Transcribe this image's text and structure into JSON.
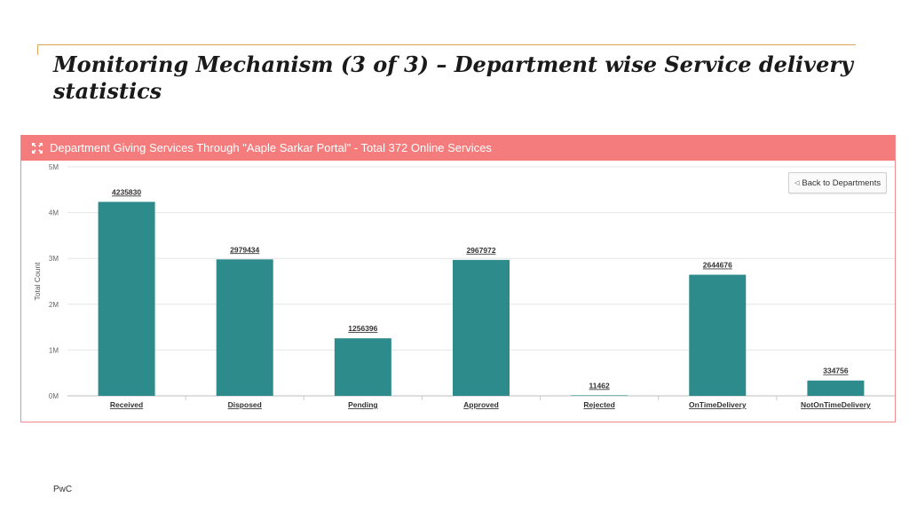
{
  "slide": {
    "title": "Monitoring Mechanism (3 of 3) – Department wise Service delivery statistics",
    "footer": "PwC"
  },
  "panel": {
    "title": "Department Giving Services Through \"Aaple Sarkar Portal\" - Total 372 Online Services",
    "icon": "expand-icon",
    "back_button_label": "Back to Departments",
    "back_button_icon": "triangle-left-icon",
    "header_color": "#f47c7c"
  },
  "chart_data": {
    "type": "bar",
    "categories": [
      "Received",
      "Disposed",
      "Pending",
      "Approved",
      "Rejected",
      "OnTimeDelivery",
      "NotOnTimeDelivery"
    ],
    "values": [
      4235830,
      2979434,
      1256396,
      2967972,
      11462,
      2644676,
      334756
    ],
    "data_labels": [
      "4235830",
      "2979434",
      "1256396",
      "2967972",
      "11462",
      "2644676",
      "334756"
    ],
    "ylabel": "Total Count",
    "yticks": [
      0,
      1000000,
      2000000,
      3000000,
      4000000,
      5000000
    ],
    "ytick_labels": [
      "0M",
      "1M",
      "2M",
      "3M",
      "4M",
      "5M"
    ],
    "ylim": [
      0,
      5000000
    ],
    "grid": true,
    "bar_color": "#2e8b8b"
  }
}
